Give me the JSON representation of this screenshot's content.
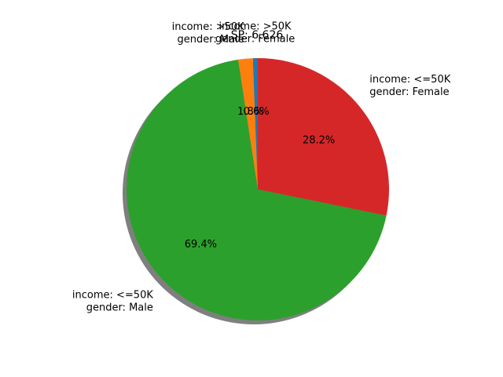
{
  "chart_data": {
    "type": "pie",
    "title": "SP: 6.626",
    "shadow": true,
    "start_angle_deg": 90,
    "direction": "counterclockwise",
    "slices": [
      {
        "label_lines": [
          "income: >50K",
          "gender: Female"
        ],
        "value": 0.6,
        "pct_label": "0.6%",
        "color": "#1f77b4"
      },
      {
        "label_lines": [
          "income: >50K",
          "gender: Male"
        ],
        "value": 1.8,
        "pct_label": "1.8%",
        "color": "#ff7f0e"
      },
      {
        "label_lines": [
          "income: <=50K",
          "gender: Male"
        ],
        "value": 69.4,
        "pct_label": "69.4%",
        "color": "#2ca02c"
      },
      {
        "label_lines": [
          "income: <=50K",
          "gender: Female"
        ],
        "value": 28.2,
        "pct_label": "28.2%",
        "color": "#d62728"
      }
    ]
  }
}
